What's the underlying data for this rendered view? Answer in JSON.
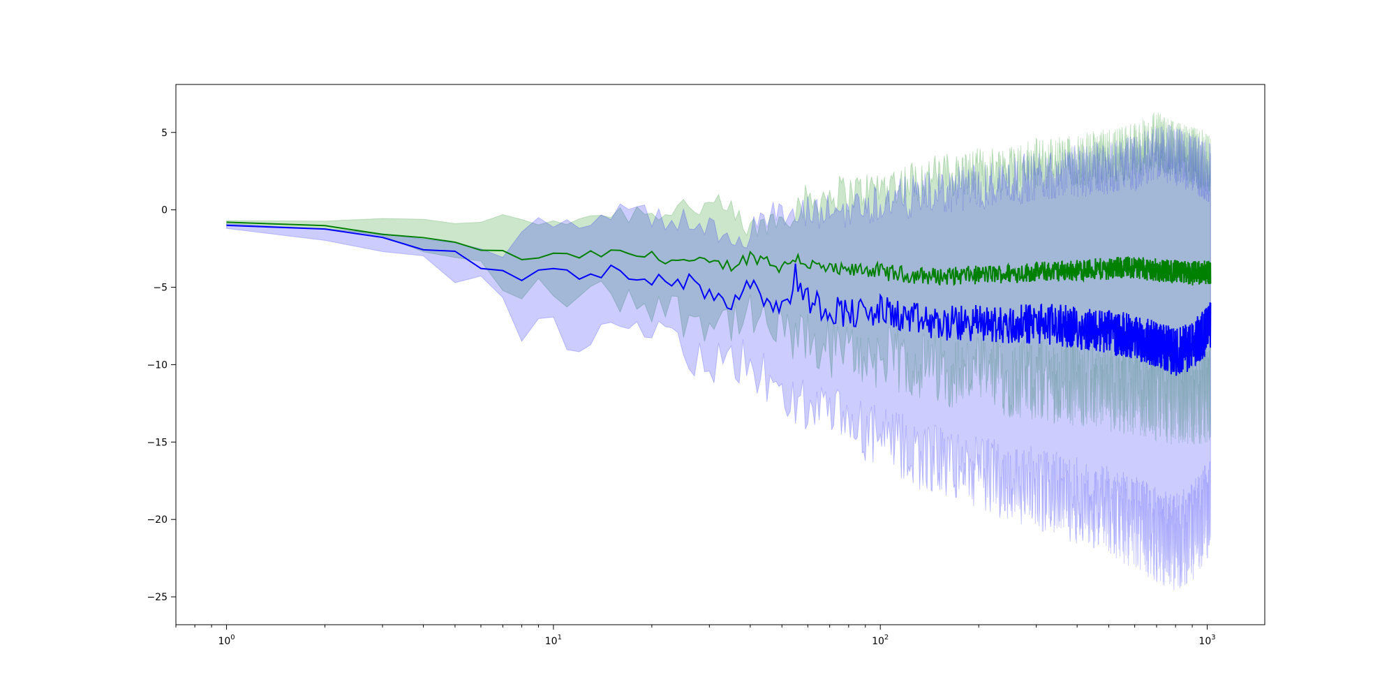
{
  "chart_data": {
    "type": "line",
    "title": "",
    "xlabel": "",
    "ylabel": "",
    "x_scale": "log",
    "xlim": [
      0.7,
      1500
    ],
    "ylim": [
      -26.8,
      8.1
    ],
    "grid": false,
    "legend": "none",
    "x_ticks": [
      {
        "base": "10",
        "exp": "0",
        "value": 1
      },
      {
        "base": "10",
        "exp": "1",
        "value": 10
      },
      {
        "base": "10",
        "exp": "2",
        "value": 100
      },
      {
        "base": "10",
        "exp": "3",
        "value": 1000
      }
    ],
    "y_ticks": [
      {
        "label": "5",
        "value": 5
      },
      {
        "label": "0",
        "value": 0
      },
      {
        "label": "−5",
        "value": -5
      },
      {
        "label": "−10",
        "value": -10
      },
      {
        "label": "−15",
        "value": -15
      },
      {
        "label": "−20",
        "value": -20
      },
      {
        "label": "−25",
        "value": -25
      }
    ],
    "x_range": [
      1,
      1024
    ],
    "series": [
      {
        "color": "#008000",
        "band_color": "#008000",
        "band_opacity": 0.2,
        "mean": [
          [
            1,
            -0.8
          ],
          [
            2,
            -1.1
          ],
          [
            3,
            -1.5
          ],
          [
            4,
            -1.9
          ],
          [
            5,
            -2.2
          ],
          [
            6,
            -2.5
          ],
          [
            7,
            -2.8
          ],
          [
            8,
            -3.2
          ],
          [
            9,
            -3.0
          ],
          [
            10,
            -3.0
          ],
          [
            12,
            -3.0
          ],
          [
            15,
            -2.8
          ],
          [
            20,
            -3.0
          ],
          [
            25,
            -3.3
          ],
          [
            30,
            -3.5
          ],
          [
            35,
            -3.6
          ],
          [
            40,
            -3.0
          ],
          [
            45,
            -3.2
          ],
          [
            50,
            -3.8
          ],
          [
            55,
            -3.0
          ],
          [
            60,
            -3.5
          ],
          [
            70,
            -3.9
          ],
          [
            80,
            -4.0
          ],
          [
            90,
            -3.8
          ],
          [
            100,
            -4.0
          ],
          [
            120,
            -4.2
          ],
          [
            150,
            -4.3
          ],
          [
            200,
            -4.2
          ],
          [
            250,
            -4.1
          ],
          [
            300,
            -4.0
          ],
          [
            400,
            -3.9
          ],
          [
            500,
            -3.8
          ],
          [
            600,
            -3.7
          ],
          [
            700,
            -3.9
          ],
          [
            800,
            -4.0
          ],
          [
            900,
            -4.1
          ],
          [
            1024,
            -4.0
          ]
        ],
        "upper": [
          [
            1,
            -0.7
          ],
          [
            2,
            -0.8
          ],
          [
            3,
            -0.8
          ],
          [
            4,
            -0.8
          ],
          [
            5,
            -0.6
          ],
          [
            6,
            -0.5
          ],
          [
            7,
            -0.7
          ],
          [
            8,
            -0.9
          ],
          [
            9,
            -0.8
          ],
          [
            10,
            -0.6
          ],
          [
            12,
            -0.4
          ],
          [
            15,
            -0.2
          ],
          [
            20,
            -0.1
          ],
          [
            25,
            0.3
          ],
          [
            30,
            0.2
          ],
          [
            35,
            -0.3
          ],
          [
            40,
            -1.5
          ],
          [
            45,
            -0.8
          ],
          [
            50,
            -0.5
          ],
          [
            55,
            0.3
          ],
          [
            60,
            0.5
          ],
          [
            70,
            1.0
          ],
          [
            80,
            1.1
          ],
          [
            90,
            1.2
          ],
          [
            100,
            1.5
          ],
          [
            120,
            1.8
          ],
          [
            150,
            2.2
          ],
          [
            200,
            2.5
          ],
          [
            250,
            2.8
          ],
          [
            300,
            3.0
          ],
          [
            400,
            3.2
          ],
          [
            500,
            3.5
          ],
          [
            600,
            3.8
          ],
          [
            700,
            4.5
          ],
          [
            800,
            3.8
          ],
          [
            900,
            3.5
          ],
          [
            1024,
            3.0
          ]
        ],
        "lower": [
          [
            1,
            -1.0
          ],
          [
            2,
            -1.3
          ],
          [
            3,
            -1.9
          ],
          [
            4,
            -2.5
          ],
          [
            5,
            -3.2
          ],
          [
            6,
            -3.8
          ],
          [
            7,
            -4.5
          ],
          [
            8,
            -5.5
          ],
          [
            9,
            -5.3
          ],
          [
            10,
            -5.4
          ],
          [
            12,
            -5.6
          ],
          [
            15,
            -5.5
          ],
          [
            20,
            -5.9
          ],
          [
            25,
            -6.8
          ],
          [
            30,
            -7.0
          ],
          [
            35,
            -7.1
          ],
          [
            40,
            -7.2
          ],
          [
            45,
            -7.6
          ],
          [
            50,
            -8.1
          ],
          [
            55,
            -8.3
          ],
          [
            60,
            -8.6
          ],
          [
            70,
            -9.0
          ],
          [
            80,
            -9.3
          ],
          [
            90,
            -9.4
          ],
          [
            100,
            -9.6
          ],
          [
            120,
            -9.9
          ],
          [
            150,
            -10.3
          ],
          [
            200,
            -10.6
          ],
          [
            250,
            -10.9
          ],
          [
            300,
            -11.0
          ],
          [
            400,
            -11.2
          ],
          [
            500,
            -11.4
          ],
          [
            600,
            -11.6
          ],
          [
            700,
            -11.9
          ],
          [
            800,
            -12.1
          ],
          [
            900,
            -12.0
          ],
          [
            1024,
            -11.8
          ]
        ]
      },
      {
        "color": "#0000ff",
        "band_color": "#0000ff",
        "band_opacity": 0.2,
        "mean": [
          [
            1,
            -1.0
          ],
          [
            2,
            -1.4
          ],
          [
            3,
            -1.9
          ],
          [
            4,
            -2.4
          ],
          [
            5,
            -2.9
          ],
          [
            6,
            -3.5
          ],
          [
            7,
            -4.0
          ],
          [
            8,
            -4.6
          ],
          [
            9,
            -3.9
          ],
          [
            10,
            -4.1
          ],
          [
            12,
            -4.3
          ],
          [
            15,
            -4.1
          ],
          [
            20,
            -4.2
          ],
          [
            25,
            -4.6
          ],
          [
            30,
            -5.3
          ],
          [
            35,
            -5.9
          ],
          [
            40,
            -4.5
          ],
          [
            45,
            -5.6
          ],
          [
            50,
            -6.6
          ],
          [
            55,
            -4.3
          ],
          [
            60,
            -5.8
          ],
          [
            70,
            -6.4
          ],
          [
            80,
            -6.6
          ],
          [
            90,
            -6.8
          ],
          [
            100,
            -6.5
          ],
          [
            120,
            -7.0
          ],
          [
            150,
            -7.4
          ],
          [
            200,
            -7.3
          ],
          [
            250,
            -7.5
          ],
          [
            300,
            -7.3
          ],
          [
            400,
            -7.6
          ],
          [
            500,
            -7.9
          ],
          [
            600,
            -8.2
          ],
          [
            700,
            -8.7
          ],
          [
            800,
            -9.2
          ],
          [
            900,
            -8.8
          ],
          [
            1024,
            -7.5
          ]
        ],
        "upper": [
          [
            1,
            -0.9
          ],
          [
            2,
            -1.1
          ],
          [
            3,
            -1.4
          ],
          [
            4,
            -1.7
          ],
          [
            5,
            -2.0
          ],
          [
            6,
            -2.3
          ],
          [
            7,
            -2.7
          ],
          [
            8,
            -2.0
          ],
          [
            9,
            -1.0
          ],
          [
            10,
            -0.7
          ],
          [
            12,
            -0.6
          ],
          [
            15,
            -0.2
          ],
          [
            20,
            -0.5
          ],
          [
            25,
            -0.8
          ],
          [
            30,
            -1.2
          ],
          [
            35,
            -1.5
          ],
          [
            40,
            -1.4
          ],
          [
            45,
            -0.6
          ],
          [
            50,
            -0.4
          ],
          [
            55,
            -0.5
          ],
          [
            60,
            -0.3
          ],
          [
            70,
            -0.1
          ],
          [
            80,
            0.0
          ],
          [
            90,
            0.3
          ],
          [
            100,
            0.5
          ],
          [
            120,
            0.8
          ],
          [
            150,
            1.1
          ],
          [
            200,
            1.5
          ],
          [
            250,
            1.8
          ],
          [
            300,
            2.2
          ],
          [
            400,
            2.5
          ],
          [
            500,
            2.8
          ],
          [
            600,
            3.0
          ],
          [
            700,
            3.8
          ],
          [
            800,
            3.5
          ],
          [
            900,
            3.0
          ],
          [
            1024,
            2.4
          ]
        ],
        "lower": [
          [
            1,
            -1.2
          ],
          [
            2,
            -1.8
          ],
          [
            3,
            -2.6
          ],
          [
            4,
            -3.4
          ],
          [
            5,
            -4.2
          ],
          [
            6,
            -5.1
          ],
          [
            7,
            -6.0
          ],
          [
            8,
            -7.9
          ],
          [
            9,
            -7.3
          ],
          [
            10,
            -7.9
          ],
          [
            12,
            -8.3
          ],
          [
            15,
            -8.1
          ],
          [
            20,
            -8.4
          ],
          [
            25,
            -9.0
          ],
          [
            30,
            -9.9
          ],
          [
            35,
            -10.3
          ],
          [
            40,
            -9.6
          ],
          [
            45,
            -11.2
          ],
          [
            50,
            -12.5
          ],
          [
            55,
            -12.3
          ],
          [
            60,
            -12.6
          ],
          [
            70,
            -13.5
          ],
          [
            80,
            -13.8
          ],
          [
            90,
            -14.3
          ],
          [
            100,
            -14.8
          ],
          [
            120,
            -15.5
          ],
          [
            150,
            -16.2
          ],
          [
            200,
            -17.0
          ],
          [
            250,
            -17.5
          ],
          [
            300,
            -18.0
          ],
          [
            400,
            -18.8
          ],
          [
            500,
            -19.5
          ],
          [
            600,
            -20.2
          ],
          [
            700,
            -21.0
          ],
          [
            800,
            -21.5
          ],
          [
            900,
            -20.8
          ],
          [
            1024,
            -19.0
          ]
        ]
      }
    ]
  }
}
